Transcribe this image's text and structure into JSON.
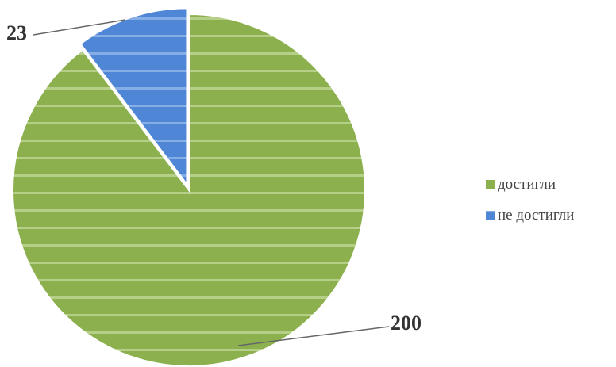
{
  "chart_data": {
    "type": "pie",
    "categories": [
      "достигли",
      "не достигли"
    ],
    "values": [
      200,
      23
    ],
    "colors": [
      "#8cb04e",
      "#4f86d6"
    ],
    "data_labels": [
      "200",
      "23"
    ],
    "exploded_slice": "не достигли",
    "legend_position": "right",
    "legend": {
      "items": [
        {
          "label": "достигли",
          "color": "#8cb04e"
        },
        {
          "label": "не достигли",
          "color": "#4f86d6"
        }
      ]
    }
  }
}
